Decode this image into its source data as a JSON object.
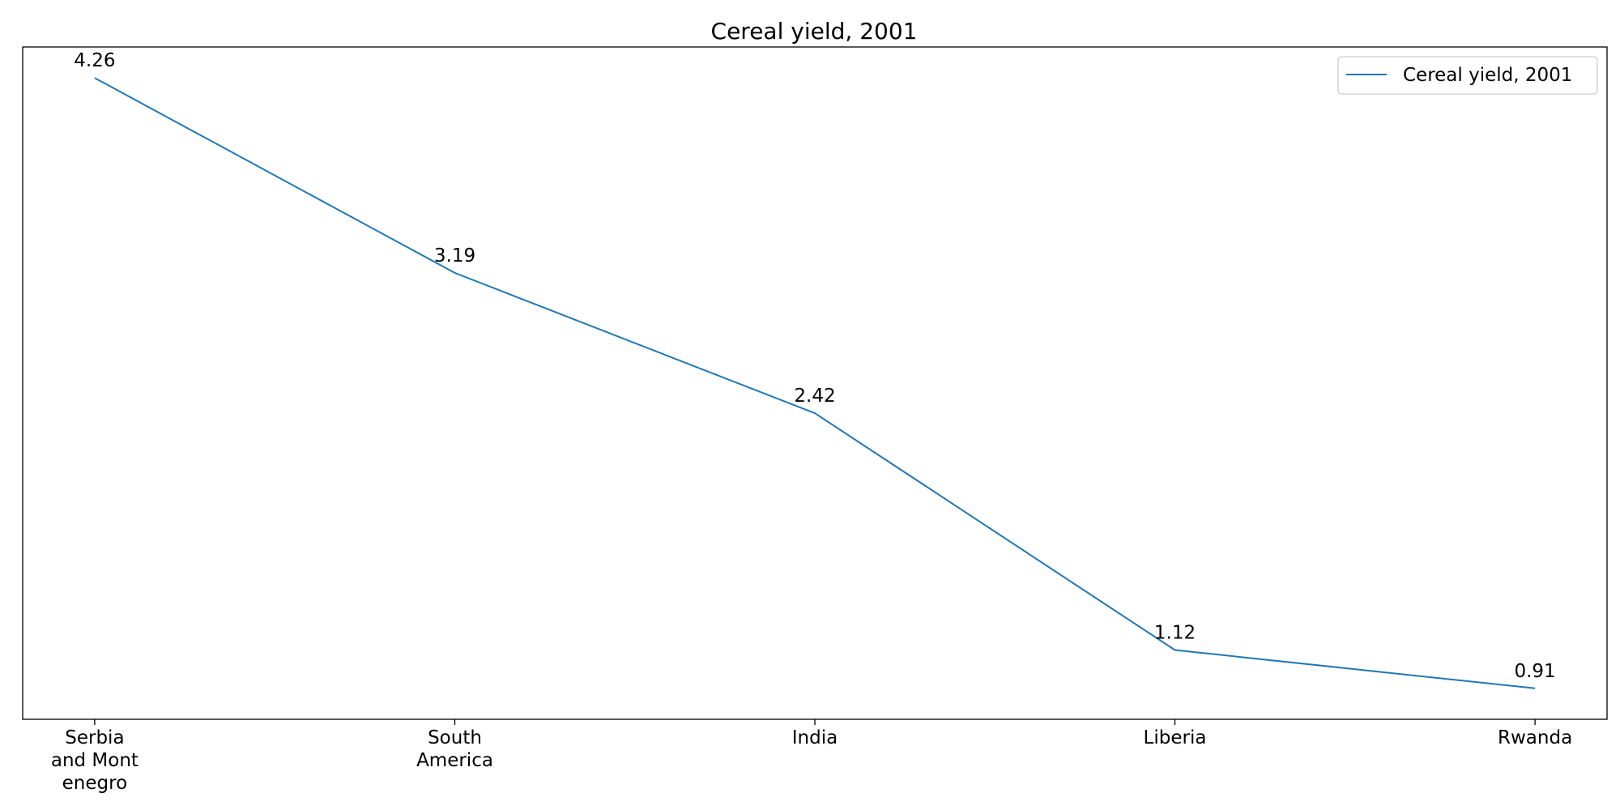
{
  "chart_data": {
    "type": "line",
    "title": "Cereal yield, 2001",
    "xlabel": "",
    "ylabel": "",
    "categories": [
      "Serbia and Montenegro",
      "South America",
      "India",
      "Liberia",
      "Rwanda"
    ],
    "tick_labels": [
      [
        "Serbia",
        "and Mont",
        "enegro"
      ],
      [
        "South",
        "America"
      ],
      [
        "India"
      ],
      [
        "Liberia"
      ],
      [
        "Rwanda"
      ]
    ],
    "series": [
      {
        "name": "Cereal yield, 2001",
        "values": [
          4.26,
          3.19,
          2.42,
          1.12,
          0.91
        ],
        "labels": [
          "4.26",
          "3.19",
          "2.42",
          "1.12",
          "0.91"
        ],
        "color": "#1f77b4"
      }
    ],
    "ylim": [
      0.74,
      4.43
    ],
    "grid": false,
    "legend": "top-right",
    "y_ticks_visible": false
  }
}
